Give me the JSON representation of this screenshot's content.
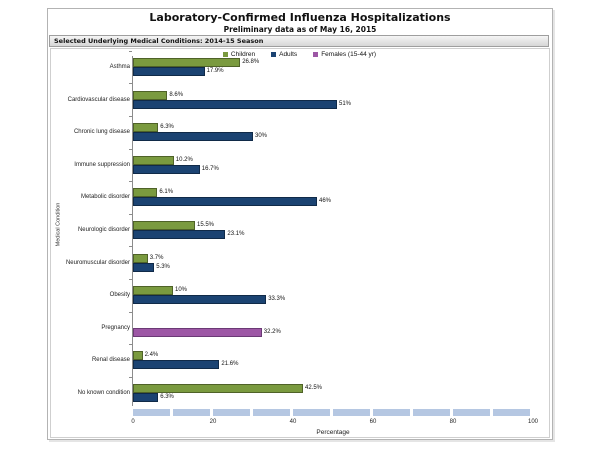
{
  "window": {
    "title": "Laboratory-Confirmed Influenza Hospitalizations",
    "subtitle": "Preliminary data as of May 16, 2015",
    "section_header": "Selected Underlying Medical Conditions: 2014-15 Season"
  },
  "legend": [
    {
      "label": "Children",
      "color": "#7a9a3f"
    },
    {
      "label": "Adults",
      "color": "#1b4372"
    },
    {
      "label": "Females (15-44 yr)",
      "color": "#9d57a5"
    }
  ],
  "colors": {
    "children_fill": "#7a9a3f",
    "children_border": "#4f6228",
    "adults_fill": "#1b4372",
    "adults_border": "#102a48",
    "females_fill": "#9d57a5",
    "females_border": "#6b3a75",
    "scrollbar": "#b5c7e2"
  },
  "chart_data": {
    "type": "bar",
    "orientation": "horizontal",
    "title": "Laboratory-Confirmed Influenza Hospitalizations",
    "subtitle": "Preliminary data as of May 16, 2015",
    "xlabel": "Percentage",
    "ylabel": "Medical Condition",
    "xlim": [
      0,
      100
    ],
    "xticks": [
      "0",
      "20",
      "40",
      "60",
      "80",
      "100"
    ],
    "grid": false,
    "legend_position": "top-center",
    "categories": [
      "Asthma",
      "Cardiovascular disease",
      "Chronic lung disease",
      "Immune suppression",
      "Metabolic disorder",
      "Neurologic disorder",
      "Neuromuscular disorder",
      "Obesity",
      "Pregnancy",
      "Renal disease",
      "No known condition"
    ],
    "series": [
      {
        "name": "Children",
        "slot": 0,
        "color": "#7a9a3f",
        "border_color": "#4f6228",
        "values": [
          26.8,
          8.6,
          6.3,
          10.2,
          6.1,
          15.5,
          3.7,
          10,
          null,
          2.4,
          42.5
        ],
        "labels": [
          "26.8%",
          "8.6%",
          "6.3%",
          "10.2%",
          "6.1%",
          "15.5%",
          "3.7%",
          "10%",
          "",
          "2.4%",
          "42.5%"
        ]
      },
      {
        "name": "Adults",
        "slot": 1,
        "color": "#1b4372",
        "border_color": "#102a48",
        "values": [
          17.9,
          51,
          30,
          16.7,
          46,
          23.1,
          5.3,
          33.3,
          null,
          21.6,
          6.3
        ],
        "labels": [
          "17.9%",
          "51%",
          "30%",
          "16.7%",
          "46%",
          "23.1%",
          "5.3%",
          "33.3%",
          "",
          "21.6%",
          "6.3%"
        ]
      },
      {
        "name": "Females (15-44 yr)",
        "slot": 1,
        "color": "#9d57a5",
        "border_color": "#6b3a75",
        "values": [
          null,
          null,
          null,
          null,
          null,
          null,
          null,
          null,
          32.2,
          null,
          null
        ],
        "labels": [
          "",
          "",
          "",
          "",
          "",
          "",
          "",
          "",
          "32.2%",
          "",
          ""
        ]
      }
    ]
  }
}
